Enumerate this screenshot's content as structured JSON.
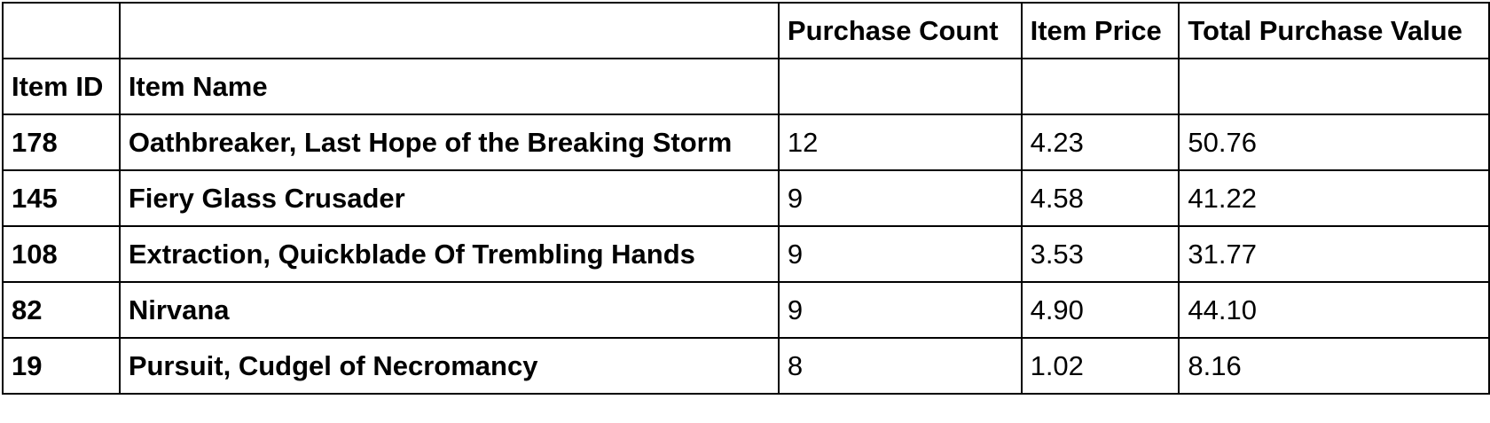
{
  "table": {
    "columns": [
      "Purchase Count",
      "Item Price",
      "Total Purchase Value"
    ],
    "index_names": [
      "Item ID",
      "Item Name"
    ],
    "rows": [
      {
        "item_id": "178",
        "item_name": "Oathbreaker, Last Hope of the Breaking Storm",
        "purchase_count": "12",
        "item_price": "4.23",
        "total_purchase_value": "50.76"
      },
      {
        "item_id": "145",
        "item_name": "Fiery Glass Crusader",
        "purchase_count": "9",
        "item_price": "4.58",
        "total_purchase_value": "41.22"
      },
      {
        "item_id": "108",
        "item_name": "Extraction, Quickblade Of Trembling Hands",
        "purchase_count": "9",
        "item_price": "3.53",
        "total_purchase_value": "31.77"
      },
      {
        "item_id": "82",
        "item_name": "Nirvana",
        "purchase_count": "9",
        "item_price": "4.90",
        "total_purchase_value": "44.10"
      },
      {
        "item_id": "19",
        "item_name": "Pursuit, Cudgel of Necromancy",
        "purchase_count": "8",
        "item_price": "1.02",
        "total_purchase_value": "8.16"
      }
    ]
  }
}
